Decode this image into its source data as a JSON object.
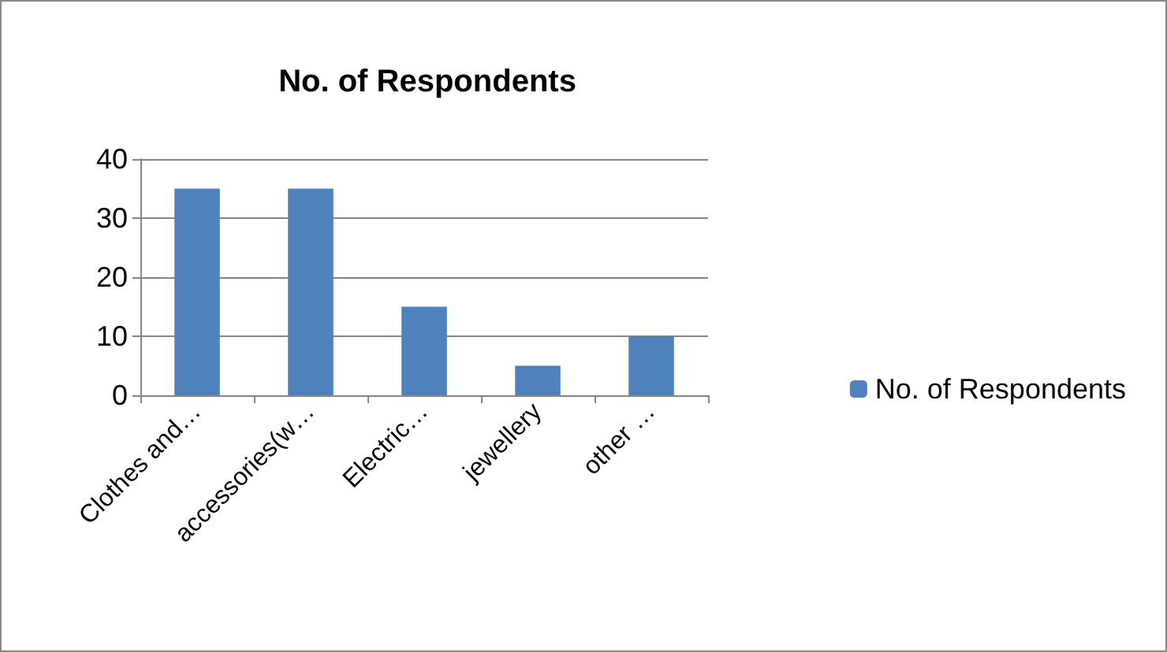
{
  "chart_data": {
    "type": "bar",
    "title": "No. of Respondents",
    "categories": [
      "Clothes and…",
      "accessories(w…",
      "Electric…",
      "jewellery",
      "other …"
    ],
    "series": [
      {
        "name": "No. of Respondents",
        "color": "#4f81bd",
        "values": [
          35,
          35,
          15,
          5,
          10
        ]
      }
    ],
    "ylim": [
      0,
      40
    ],
    "yticks": [
      0,
      10,
      20,
      30,
      40
    ],
    "grid": "y",
    "legend": "right"
  }
}
